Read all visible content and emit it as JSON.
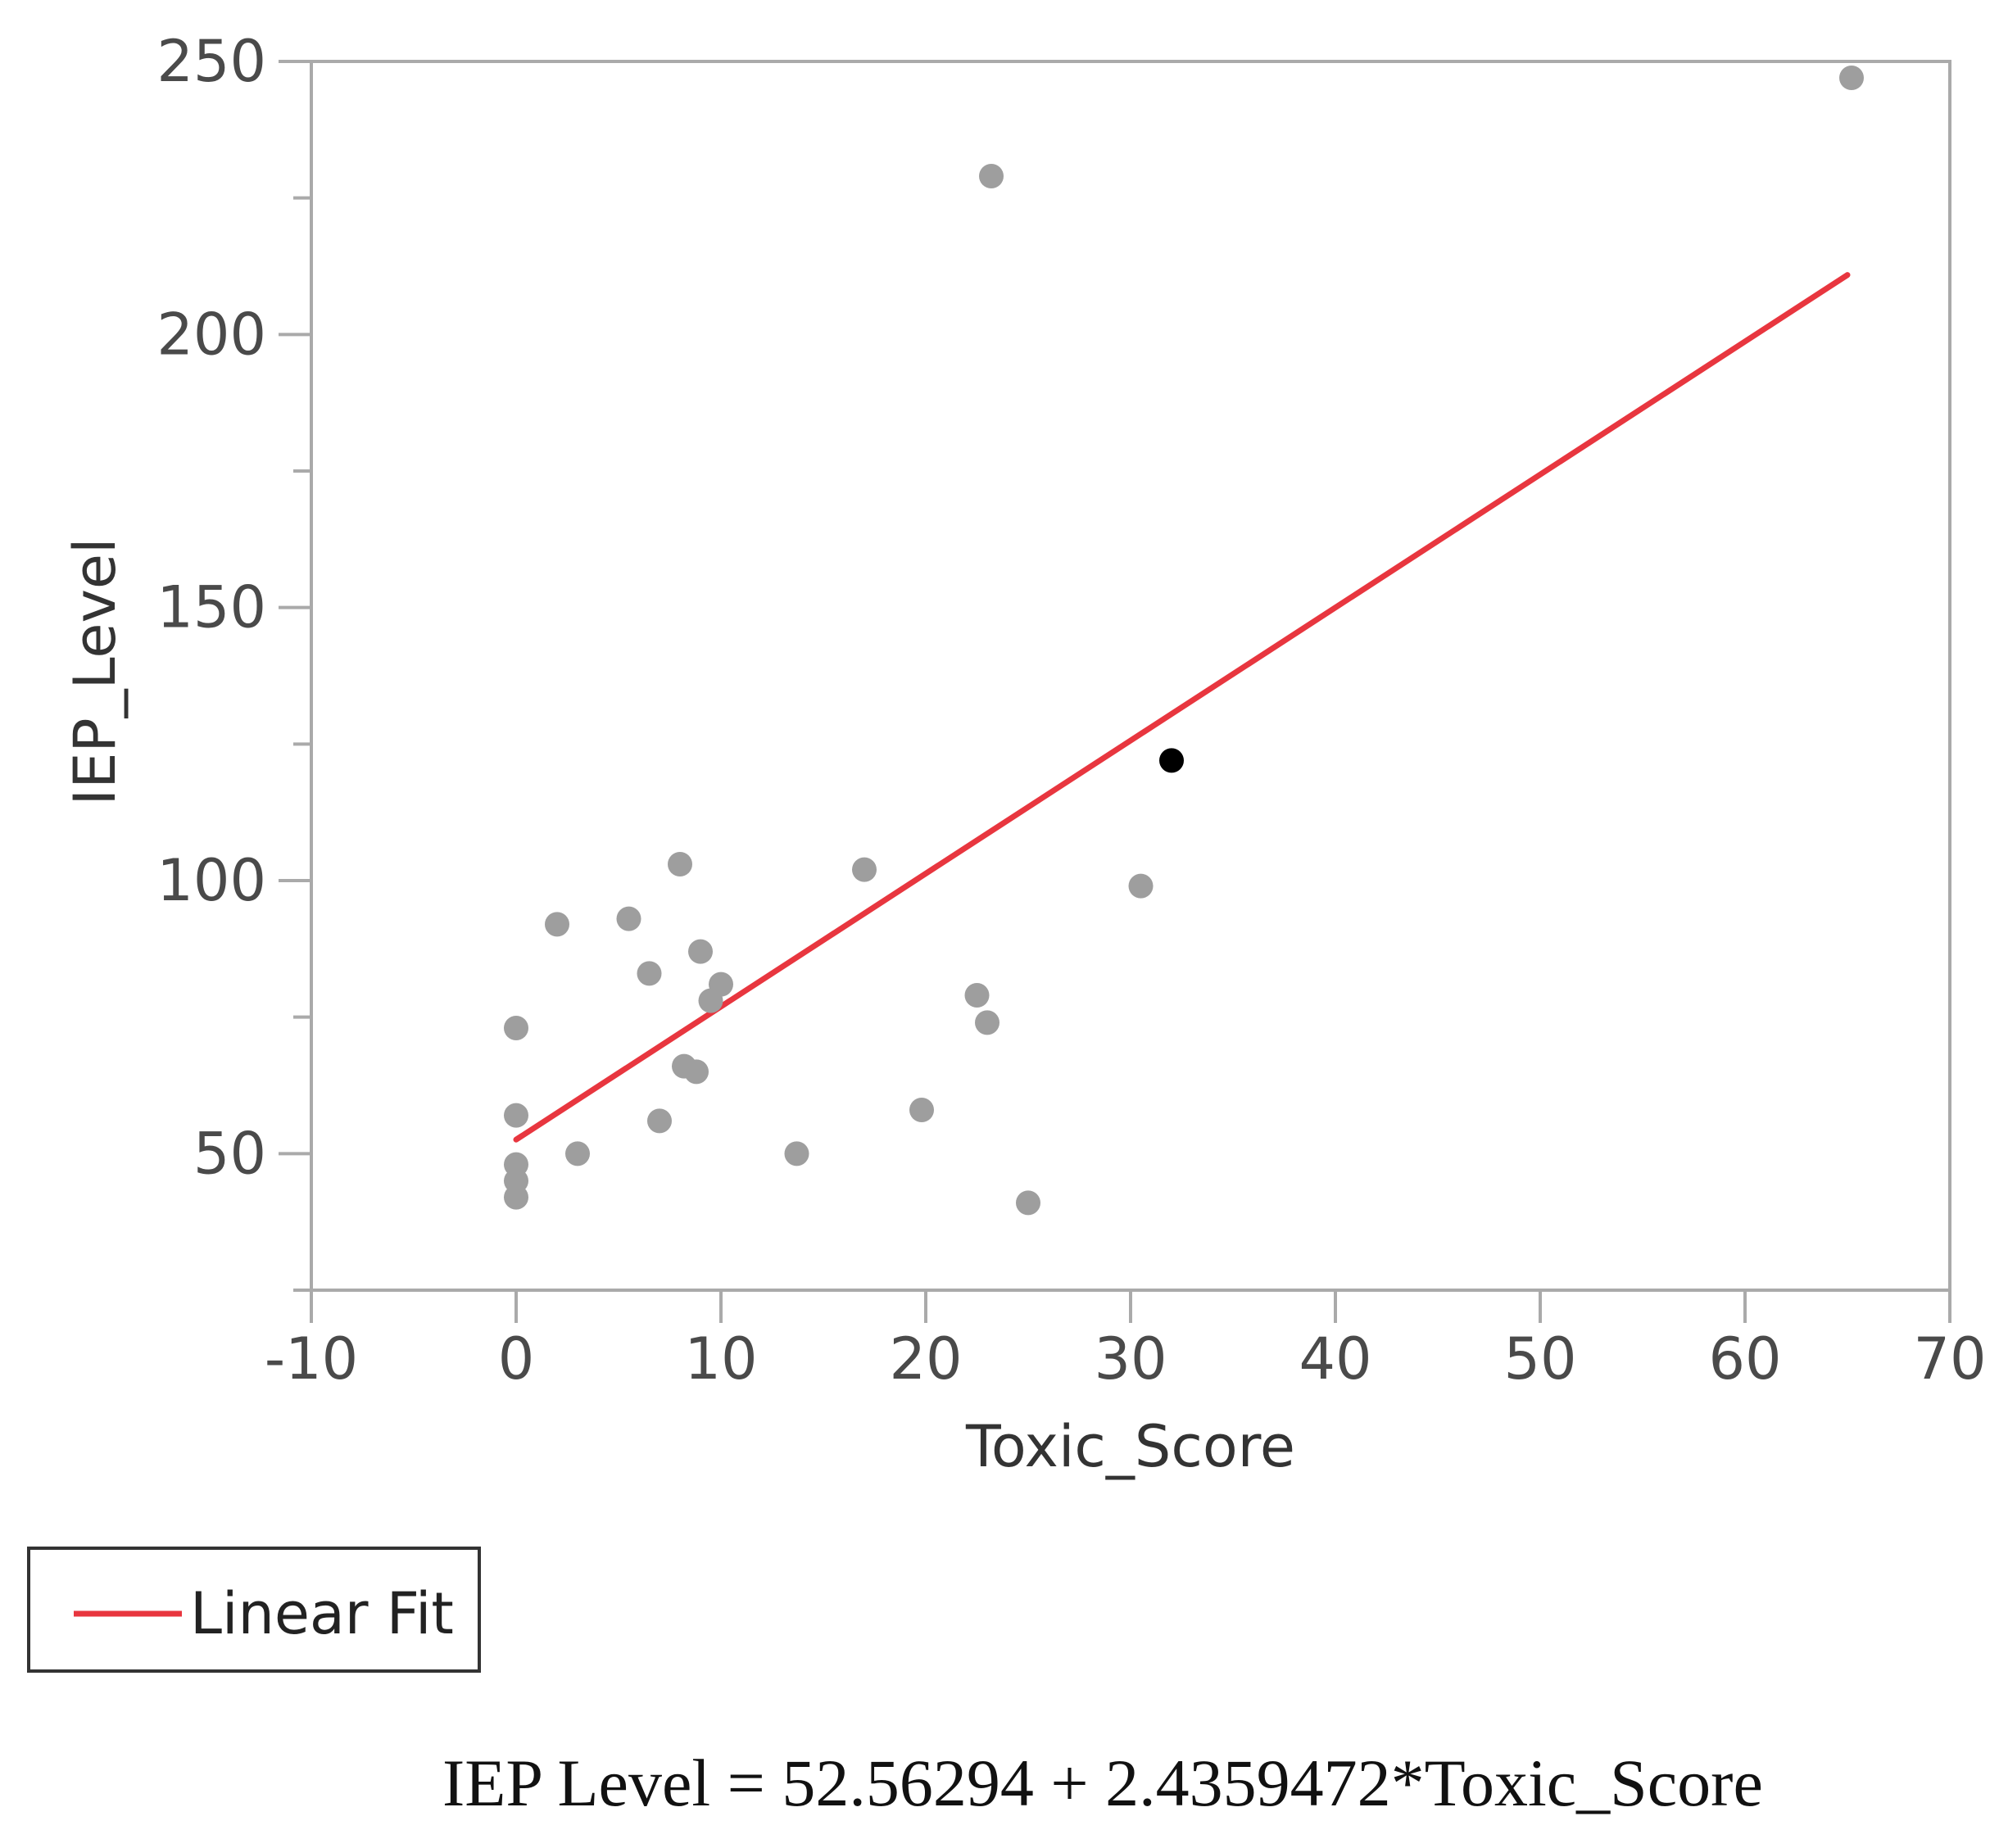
{
  "chart_data": {
    "type": "scatter",
    "title": "",
    "xlabel": "Toxic_Score",
    "ylabel": "IEP_Level",
    "xlim": [
      -10,
      70
    ],
    "ylim": [
      25,
      250
    ],
    "x_ticks": [
      "-10",
      "0",
      "10",
      "20",
      "30",
      "40",
      "50",
      "60",
      "70"
    ],
    "y_ticks": [
      "50",
      "100",
      "150",
      "200",
      "250"
    ],
    "grid": false,
    "legend_position": "bottom-left",
    "series": [
      {
        "color": "#9e9e9e",
        "points": [
          {
            "x": 0,
            "y": 73
          },
          {
            "x": 0,
            "y": 57
          },
          {
            "x": 0,
            "y": 48
          },
          {
            "x": 0,
            "y": 45
          },
          {
            "x": 0,
            "y": 42
          },
          {
            "x": 2,
            "y": 92
          },
          {
            "x": 3,
            "y": 50
          },
          {
            "x": 5.5,
            "y": 93
          },
          {
            "x": 6.5,
            "y": 83
          },
          {
            "x": 7,
            "y": 56
          },
          {
            "x": 8,
            "y": 103
          },
          {
            "x": 8.2,
            "y": 66
          },
          {
            "x": 8.8,
            "y": 65
          },
          {
            "x": 9,
            "y": 87
          },
          {
            "x": 9.5,
            "y": 78
          },
          {
            "x": 10,
            "y": 81
          },
          {
            "x": 13.7,
            "y": 50
          },
          {
            "x": 17,
            "y": 102
          },
          {
            "x": 19.8,
            "y": 58
          },
          {
            "x": 22.5,
            "y": 79
          },
          {
            "x": 23,
            "y": 74
          },
          {
            "x": 23.2,
            "y": 229
          },
          {
            "x": 25,
            "y": 41
          },
          {
            "x": 30.5,
            "y": 99
          },
          {
            "x": 65.2,
            "y": 247
          }
        ]
      },
      {
        "color": "#000000",
        "points": [
          {
            "x": 32,
            "y": 122
          }
        ]
      }
    ],
    "fit": {
      "name": "Linear Fit",
      "color": "#e8363f",
      "intercept": 52.56294,
      "slope": 2.4359472,
      "x_range": [
        0,
        65
      ]
    }
  },
  "legend": {
    "label": "Linear Fit"
  },
  "equation": "IEP Level = 52.56294 + 2.4359472*Toxic_Score"
}
